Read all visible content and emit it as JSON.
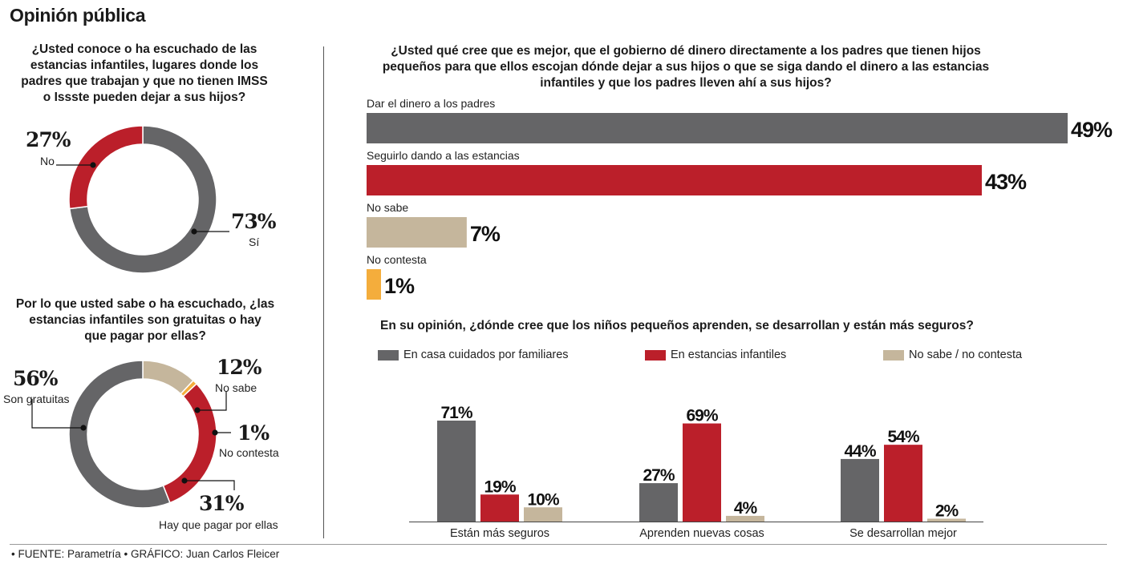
{
  "page_title": "Opinión pública",
  "colors": {
    "gray": "#656567",
    "red": "#bb1f2a",
    "beige": "#c5b69c",
    "orange": "#f4ad3c"
  },
  "footer": "• FUENTE: Parametría • GRÁFICO: Juan Carlos Fleicer",
  "chart_data": [
    {
      "id": "conoce-estancias",
      "type": "pie",
      "style": "donut",
      "title": "¿Usted conoce o ha escuchado de las estancias infantiles, lugares donde  los padres que trabajan y que no tienen IMSS o Issste pueden dejar a sus hijos?",
      "title_lines": [
        "¿Usted conoce o ha escuchado de las",
        "estancias infantiles, lugares donde  los",
        "padres que trabajan y que no tienen IMSS",
        "o Issste pueden dejar a sus hijos?"
      ],
      "slices": [
        {
          "label": "Sí",
          "value": 73,
          "value_label": "73%",
          "color": "#656567"
        },
        {
          "label": "No",
          "value": 27,
          "value_label": "27%",
          "color": "#bb1f2a"
        }
      ]
    },
    {
      "id": "gratuitas",
      "type": "pie",
      "style": "donut",
      "title": "Por lo que usted sabe o ha escuchado, ¿las estancias infantiles son gratuitas o hay que pagar por ellas?",
      "title_lines": [
        "Por lo que usted sabe o ha escuchado, ¿las",
        "estancias infantiles son gratuitas o hay",
        "que pagar por ellas?"
      ],
      "slices": [
        {
          "label": "Son gratuitas",
          "value": 56,
          "value_label": "56%",
          "color": "#656567"
        },
        {
          "label": "No sabe",
          "value": 12,
          "value_label": "12%",
          "color": "#c5b69c"
        },
        {
          "label": "No contesta",
          "value": 1,
          "value_label": "1%",
          "color": "#f4ad3c"
        },
        {
          "label": "Hay que pagar por ellas",
          "value": 31,
          "value_label": "31%",
          "color": "#bb1f2a"
        }
      ]
    },
    {
      "id": "dinero-padres",
      "type": "bar",
      "orientation": "horizontal",
      "title": "¿Usted qué cree que es mejor, que el gobierno dé dinero directamente a los padres que tienen hijos pequeños para que ellos escojan dónde dejar a sus hijos o que se siga dando el dinero a las estancias infantiles y que los padres lleven ahí a sus hijos?",
      "title_lines": [
        "¿Usted qué cree que es mejor, que el gobierno dé dinero directamente a los padres que tienen hijos",
        "pequeños para que ellos escojan dónde dejar a sus hijos o que se siga dando el dinero a las estancias",
        "infantiles y que los padres lleven ahí a sus hijos?"
      ],
      "categories": [
        "Dar el dinero a los padres",
        "Seguirlo dando a las estancias",
        "No sabe",
        "No contesta"
      ],
      "values": [
        49,
        43,
        7,
        1
      ],
      "value_labels": [
        "49%",
        "43%",
        "7%",
        "1%"
      ],
      "colors": [
        "#656567",
        "#bb1f2a",
        "#c5b69c",
        "#f4ad3c"
      ],
      "xlim": [
        0,
        49
      ]
    },
    {
      "id": "donde-aprenden",
      "type": "bar",
      "orientation": "vertical",
      "title": "En su opinión, ¿dónde cree que los niños pequeños aprenden, se desarrollan y están más seguros?",
      "categories": [
        "Están más seguros",
        "Aprenden nuevas cosas",
        "Se desarrollan mejor"
      ],
      "series": [
        {
          "name": "En casa cuidados por familiares",
          "color": "#656567",
          "values": [
            71,
            27,
            44
          ],
          "value_labels": [
            "71%",
            "27%",
            "44%"
          ]
        },
        {
          "name": "En estancias infantiles",
          "color": "#bb1f2a",
          "values": [
            19,
            69,
            54
          ],
          "value_labels": [
            "19%",
            "69%",
            "54%"
          ]
        },
        {
          "name": "No sabe / no contesta",
          "color": "#c5b69c",
          "values": [
            10,
            4,
            2
          ],
          "value_labels": [
            "10%",
            "4%",
            "2%"
          ]
        }
      ],
      "ylim": [
        0,
        71
      ],
      "legend_position": "top"
    }
  ]
}
